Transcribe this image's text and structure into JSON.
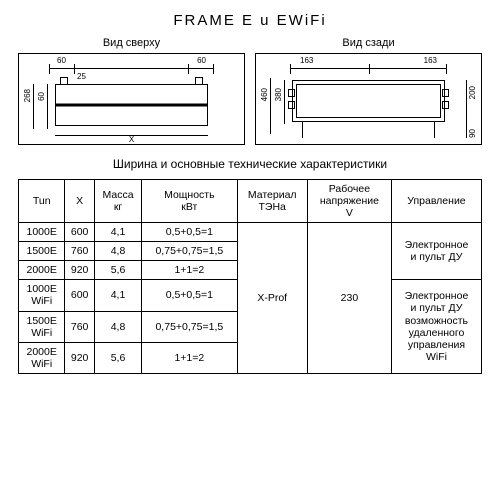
{
  "title": "FRAME E u EWiFi",
  "views": {
    "top": {
      "label": "Вид сверху",
      "dims": {
        "d60a": "60",
        "d60b": "60",
        "d60c": "60",
        "d25": "25",
        "d268": "268",
        "x": "X"
      }
    },
    "rear": {
      "label": "Вид сзади",
      "dims": {
        "d163a": "163",
        "d163b": "163",
        "d460": "460",
        "d380": "380",
        "d200": "200",
        "d90": "90"
      }
    }
  },
  "caption": "Ширина и основные технические характеристики",
  "table": {
    "headers": {
      "type": "Tun",
      "x": "X",
      "mass": "Масса\nкг",
      "power": "Мощность\nкВт",
      "material": "Материал\nТЭНа",
      "voltage": "Рабочее\nнапряжение\nV",
      "control": "Управление"
    },
    "merged": {
      "material": "X-Prof",
      "voltage": "230",
      "control1": "Электронное\nи пульт ДУ",
      "control2": "Электронное\nи пульт ДУ\nвозможность\nудаленного\nуправления\nWiFi"
    },
    "rows": [
      {
        "type": "1000E",
        "x": "600",
        "mass": "4,1",
        "power": "0,5+0,5=1"
      },
      {
        "type": "1500E",
        "x": "760",
        "mass": "4,8",
        "power": "0,75+0,75=1,5"
      },
      {
        "type": "2000E",
        "x": "920",
        "mass": "5,6",
        "power": "1+1=2"
      },
      {
        "type": "1000E\nWiFi",
        "x": "600",
        "mass": "4,1",
        "power": "0,5+0,5=1"
      },
      {
        "type": "1500E\nWiFi",
        "x": "760",
        "mass": "4,8",
        "power": "0,75+0,75=1,5"
      },
      {
        "type": "2000E\nWiFi",
        "x": "920",
        "mass": "5,6",
        "power": "1+1=2"
      }
    ]
  },
  "style": {
    "border_color": "#000000",
    "bg_color": "#ffffff",
    "text_color": "#000000"
  }
}
